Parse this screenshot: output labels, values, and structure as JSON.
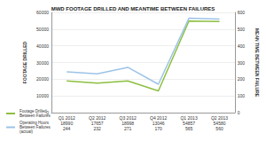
{
  "chart_data": {
    "type": "line",
    "title": "MWD FOOTAGE DRILLED AND MEANTIME BETWEEN FAILURES",
    "ylabel": "FOOTAGE DRILLED",
    "y2label": "MEAN TIME BETWEEN FAILURE",
    "categories": [
      "Q1 2012",
      "Q2 2012",
      "Q3 2012",
      "Q4 2012",
      "Q1 2013",
      "Q2 2013"
    ],
    "series": [
      {
        "name": "Footage Drilled Between Failures",
        "color": "#8cbf3f",
        "values": [
          18990,
          17657,
          18998,
          13046,
          54857,
          54580
        ]
      },
      {
        "name": "Operating Hours Between Failures (actual)",
        "color": "#9dc3e6",
        "values": [
          244,
          232,
          271,
          170,
          565,
          560
        ],
        "axis": "y2"
      }
    ],
    "ylim": [
      0,
      60000
    ],
    "yticks": [
      0,
      10000,
      20000,
      30000,
      40000,
      50000,
      60000
    ],
    "y2lim": [
      0,
      600
    ],
    "y2ticks": [
      0,
      100,
      200,
      300,
      400,
      500,
      600
    ],
    "grid": true,
    "legend": "bottom-left"
  }
}
